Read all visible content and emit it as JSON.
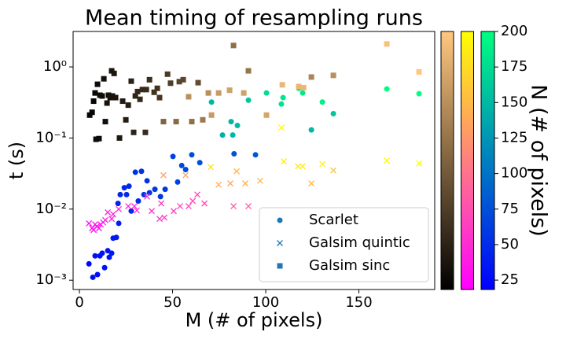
{
  "chart_data": {
    "type": "scatter",
    "title": "Mean timing of resampling runs",
    "x_label": "M (# of pixels)",
    "y_label": "t (s)",
    "xlim": [
      -3.4,
      190.7
    ],
    "xticks": [
      0,
      50,
      100,
      150
    ],
    "ylim": [
      0.00074,
      3.15
    ],
    "y_log": true,
    "yticks": [
      {
        "value": 0.001,
        "label": "10⁻³"
      },
      {
        "value": 0.01,
        "label": "10⁻²"
      },
      {
        "value": 0.1,
        "label": "10⁻¹"
      },
      {
        "value": 1,
        "label": "10⁰"
      }
    ],
    "legend_position": "lower right",
    "colorbar": {
      "label": "N (# of pixels)",
      "lim": [
        18.4,
        200
      ],
      "ticks": [
        25,
        50,
        75,
        100,
        125,
        150,
        175,
        200
      ]
    },
    "series": [
      {
        "name": "Scarlet",
        "marker": "o",
        "color": "#1f77b4",
        "colormap": [
          "#0000ff",
          "#00ff80"
        ],
        "x": [
          5.1,
          7.2,
          8.4,
          9.7,
          11.0,
          12.2,
          13.5,
          15.2,
          16.0,
          17.3,
          18.1,
          19.8,
          21.1,
          20.7,
          21.9,
          24.1,
          25.3,
          26.6,
          27.8,
          30.0,
          31.6,
          33.3,
          34.6,
          36.3,
          37.6,
          40.5,
          43.5,
          46.0,
          50.2,
          52.7,
          54.9,
          57.0,
          60.3,
          64.6,
          70.9,
          76.8,
          81.4,
          82.3,
          84.8,
          90.7,
          83,
          94.5,
          100.4,
          108.4,
          109.3,
          117.7,
          119.8,
          124.5,
          130.4,
          136.3,
          165.0,
          182.3
        ],
        "values": [
          0.0017,
          0.0011,
          0.0022,
          0.0012,
          0.0022,
          0.0024,
          0.0015,
          0.0026,
          0.0021,
          0.0024,
          0.0039,
          0.004,
          0.0063,
          0.012,
          0.016,
          0.02,
          0.016,
          0.021,
          0.0094,
          0.033,
          0.013,
          0.034,
          0.016,
          0.025,
          0.017,
          0.019,
          0.015,
          0.019,
          0.055,
          0.024,
          0.041,
          0.036,
          0.058,
          0.045,
          0.32,
          0.11,
          0.17,
          0.11,
          0.15,
          0.34,
          0.06,
          0.058,
          0.43,
          0.3,
          0.37,
          0.5,
          0.43,
          0.13,
          0.32,
          0.22,
          0.49,
          0.42
        ],
        "color_values": [
          25,
          28,
          30,
          28,
          30,
          32,
          30,
          33,
          33,
          35,
          36,
          38,
          40,
          42,
          44,
          45,
          46,
          48,
          46,
          52,
          50,
          54,
          52,
          55,
          55,
          58,
          58,
          60,
          65,
          64,
          68,
          70,
          72,
          75,
          150,
          145,
          150,
          150,
          152,
          160,
          78,
          80,
          175,
          180,
          182,
          185,
          185,
          150,
          190,
          160,
          198,
          200
        ]
      },
      {
        "name": "Galsim quintic",
        "marker": "x",
        "color": "#1f77b4",
        "colormap": [
          "#ff00ff",
          "#ffff00"
        ],
        "x": [
          5.1,
          6.8,
          7.6,
          8.4,
          9.3,
          10.5,
          11.4,
          12.7,
          13.9,
          15.2,
          17.3,
          18.1,
          21.1,
          26.2,
          29.5,
          30.8,
          36.3,
          38.8,
          43.0,
          43.9,
          45.1,
          45.6,
          50.6,
          54.0,
          57.0,
          58.6,
          60.8,
          63.3,
          67.1,
          70.5,
          74.7,
          81.0,
          82.7,
          84.4,
          89.0,
          90.7,
          97.0,
          108.4,
          109.7,
          117.3,
          119.8,
          124.5,
          130.4,
          136.3,
          165.0,
          182.3
        ],
        "values": [
          0.0063,
          0.0054,
          0.0051,
          0.0061,
          0.0057,
          0.0054,
          0.0061,
          0.0065,
          0.007,
          0.009,
          0.0073,
          0.0085,
          0.01,
          0.011,
          0.011,
          0.0096,
          0.015,
          0.0094,
          0.0073,
          0.012,
          0.03,
          0.0076,
          0.0094,
          0.011,
          0.03,
          0.011,
          0.013,
          0.016,
          0.012,
          0.039,
          0.022,
          0.023,
          0.011,
          0.034,
          0.023,
          0.011,
          0.025,
          0.14,
          0.047,
          0.04,
          0.04,
          0.023,
          0.043,
          0.035,
          0.048,
          0.044
        ],
        "color_values": [
          25,
          28,
          28,
          30,
          30,
          32,
          32,
          34,
          35,
          36,
          38,
          40,
          42,
          46,
          48,
          50,
          54,
          55,
          58,
          58,
          130,
          60,
          62,
          64,
          135,
          66,
          68,
          70,
          72,
          180,
          140,
          140,
          80,
          150,
          145,
          82,
          148,
          195,
          185,
          185,
          188,
          150,
          190,
          160,
          198,
          200
        ]
      },
      {
        "name": "Galsim sinc",
        "marker": "s",
        "color": "#1f77b4",
        "colormap": [
          "#000000",
          "#ffc77f"
        ],
        "x": [
          5.5,
          6.8,
          7.6,
          8.4,
          8.9,
          9.7,
          10.5,
          11.0,
          12.2,
          13.1,
          13.9,
          14.8,
          15.6,
          16.5,
          17.3,
          17.7,
          18.6,
          19.4,
          21.5,
          23.2,
          24.9,
          26.2,
          27.8,
          29.1,
          30.0,
          31.2,
          32.5,
          33.8,
          35.4,
          35.9,
          37.6,
          40.1,
          41.8,
          43.0,
          45.1,
          47.3,
          48.9,
          51.9,
          53.6,
          55.7,
          58.6,
          60.3,
          63.7,
          66.2,
          69.2,
          70.9,
          74.7,
          80.6,
          82.7,
          88.2,
          90.7,
          100.4,
          108.9,
          117.7,
          120.3,
          124.5,
          136.3,
          165.0,
          182.3
        ],
        "values": [
          0.21,
          0.23,
          0.33,
          0.43,
          0.096,
          0.57,
          0.098,
          0.4,
          0.39,
          0.68,
          0.17,
          0.31,
          0.4,
          0.37,
          0.88,
          0.39,
          0.81,
          0.37,
          0.1,
          0.33,
          0.18,
          0.29,
          0.63,
          0.12,
          0.39,
          0.45,
          0.35,
          0.48,
          0.12,
          0.48,
          0.66,
          0.44,
          0.5,
          0.37,
          0.17,
          0.79,
          0.59,
          0.17,
          0.62,
          0.66,
          0.38,
          0.17,
          0.6,
          0.18,
          0.43,
          0.21,
          0.43,
          0.47,
          2.0,
          0.43,
          0.88,
          0.21,
          0.56,
          0.53,
          0.51,
          0.72,
          0.76,
          2.1,
          0.85
        ],
        "color_values": [
          22,
          24,
          24,
          26,
          26,
          28,
          28,
          30,
          30,
          32,
          32,
          34,
          34,
          35,
          36,
          36,
          38,
          38,
          40,
          42,
          44,
          46,
          48,
          50,
          52,
          54,
          55,
          56,
          58,
          58,
          60,
          64,
          66,
          68,
          110,
          72,
          74,
          115,
          80,
          82,
          150,
          120,
          88,
          130,
          150,
          160,
          160,
          165,
          120,
          165,
          125,
          170,
          185,
          185,
          185,
          140,
          150,
          195,
          200
        ]
      }
    ]
  }
}
